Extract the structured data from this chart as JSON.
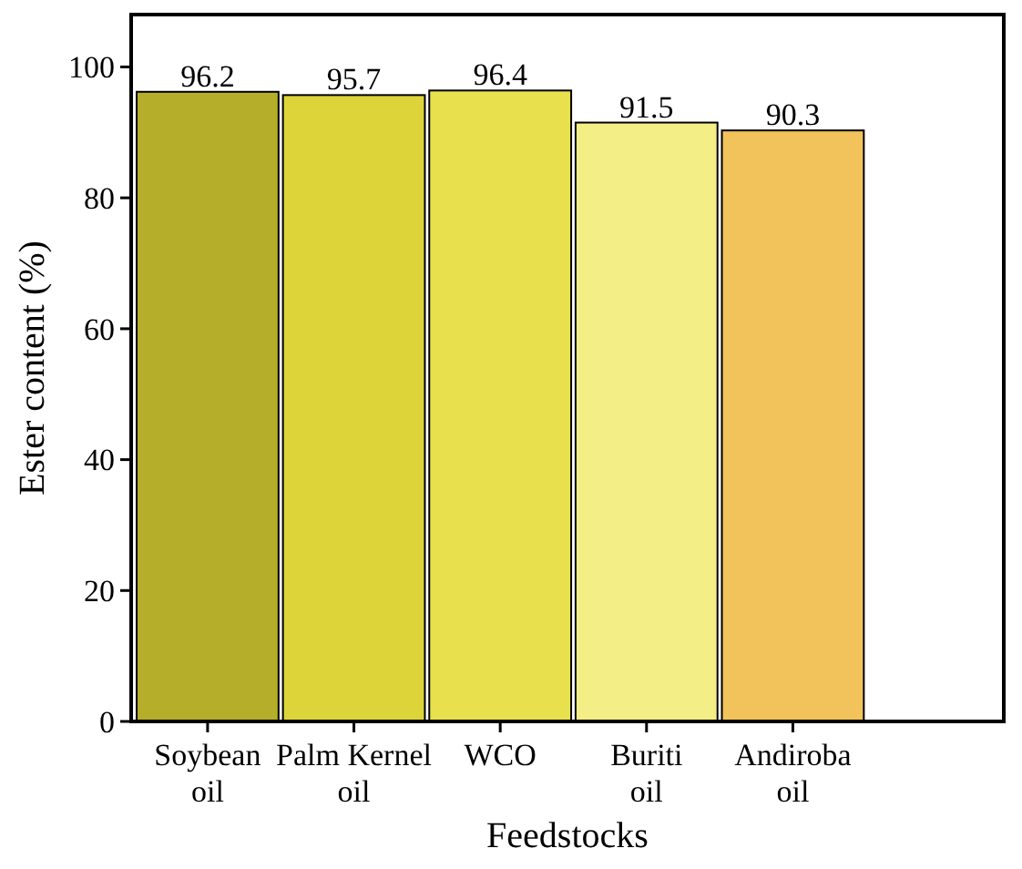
{
  "chart_data": {
    "type": "bar",
    "xlabel": "Feedstocks",
    "ylabel": "Ester content (%)",
    "categories": [
      "Soybean oil",
      "Palm Kernel oil",
      "WCO",
      "Buriti oil",
      "Andiroba oil"
    ],
    "values": [
      96.2,
      95.7,
      96.4,
      91.5,
      90.3
    ],
    "colors": [
      "#b4ae2a",
      "#ddd43a",
      "#e8e04c",
      "#f4ee86",
      "#f1c35a"
    ],
    "ylim": [
      0,
      108
    ],
    "yticks": [
      0,
      20,
      40,
      60,
      80,
      100
    ],
    "data_labels": true,
    "grid": false
  }
}
